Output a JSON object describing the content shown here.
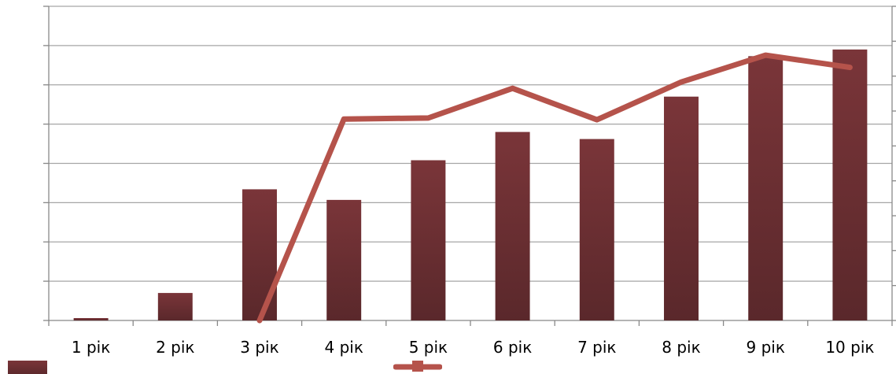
{
  "chart_data": {
    "type": "bar",
    "categories": [
      "1 рік",
      "2 рік",
      "3 рік",
      "4 рік",
      "5 рік",
      "6 рік",
      "7 рік",
      "8 рік",
      "9 рік",
      "10 рік"
    ],
    "series": [
      {
        "type": "bar",
        "values": [
          0.06,
          0.7,
          3.34,
          3.07,
          4.08,
          4.8,
          4.62,
          5.7,
          6.73,
          6.9
        ]
      },
      {
        "type": "line",
        "values": [
          null,
          null,
          0,
          5.77,
          5.8,
          6.65,
          5.75,
          6.83,
          7.6,
          7.25
        ],
        "line_values_note": ""
      }
    ],
    "ylim": [
      0,
      8
    ],
    "y2lim": [
      0,
      9
    ],
    "grid": true,
    "colors": {
      "bar": "#7a3539",
      "line": "#b5534b"
    }
  }
}
